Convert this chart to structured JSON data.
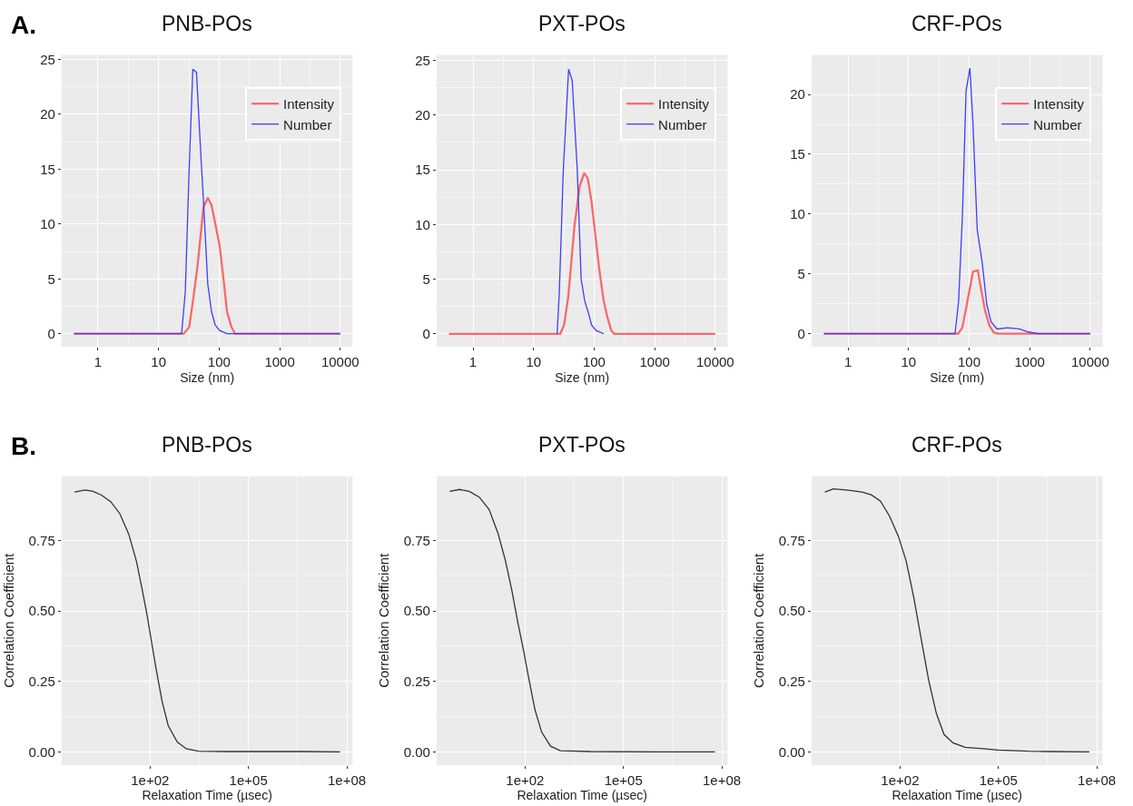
{
  "chart_data": [
    {
      "type": "line",
      "title": "PNB-POs",
      "xlabel": "Size (nm)",
      "log": "x",
      "xlim": [
        0.25,
        16000
      ],
      "ylim": [
        -1.21,
        25.4
      ],
      "xticks": [
        1,
        10,
        100,
        1000,
        10000
      ],
      "yticks": [
        0,
        5,
        10,
        15,
        20,
        25
      ],
      "grid": true,
      "legend": "top right",
      "annotations": [
        "A."
      ],
      "series": [
        {
          "name": "Intensity",
          "color": "#f8696b",
          "x": [
            0.4,
            26,
            32,
            37,
            44,
            55,
            65,
            75,
            88,
            102,
            118,
            135,
            160,
            184,
            10000
          ],
          "values": [
            0,
            0,
            0.6,
            3,
            6.2,
            11.5,
            12.4,
            11.7,
            9.8,
            8,
            5,
            2,
            0.6,
            0,
            0
          ]
        },
        {
          "name": "Number",
          "color": "#3d3dff",
          "x": [
            0.4,
            24,
            27.6,
            32,
            36.8,
            42.3,
            48,
            55,
            65,
            75,
            86,
            102,
            135,
            10000
          ],
          "values": [
            0,
            0,
            3.8,
            15,
            24.1,
            23.8,
            18,
            12.2,
            4.5,
            2,
            0.8,
            0.3,
            0,
            0
          ]
        }
      ]
    },
    {
      "type": "line",
      "title": "PXT-POs",
      "xlabel": "Size (nm)",
      "log": "x",
      "xlim": [
        0.25,
        16000
      ],
      "ylim": [
        -1.21,
        25.5
      ],
      "xticks": [
        1,
        10,
        100,
        1000,
        10000
      ],
      "yticks": [
        0,
        5,
        10,
        15,
        20,
        25
      ],
      "grid": true,
      "legend": "top right",
      "series": [
        {
          "name": "Intensity",
          "color": "#f8696b",
          "x": [
            0.4,
            27.5,
            31.9,
            37.6,
            47.6,
            57.8,
            68.6,
            78.6,
            91,
            105,
            121,
            144,
            166,
            192,
            215,
            10000
          ],
          "values": [
            0,
            0,
            0.8,
            3.5,
            10,
            13.5,
            14.7,
            14.2,
            12,
            9,
            6,
            3,
            1.5,
            0.3,
            0,
            0
          ]
        },
        {
          "name": "Number",
          "color": "#3d3dff",
          "x": [
            24.5,
            26.6,
            31,
            37.9,
            43.4,
            52.7,
            61,
            70,
            79.6,
            91,
            108,
            144
          ],
          "values": [
            0,
            3.8,
            15,
            24.2,
            23.2,
            15,
            5,
            3,
            2,
            0.8,
            0.3,
            0
          ]
        }
      ]
    },
    {
      "type": "line",
      "title": "CRF-POs",
      "xlabel": "Size (nm)",
      "log": "x",
      "xlim": [
        0.25,
        16000
      ],
      "ylim": [
        -1.11,
        23.3
      ],
      "xticks": [
        1,
        10,
        100,
        1000,
        10000
      ],
      "yticks": [
        0,
        5,
        10,
        15,
        20
      ],
      "grid": true,
      "legend": "top right",
      "series": [
        {
          "name": "Intensity",
          "color": "#f8696b",
          "x": [
            0.4,
            66,
            77,
            92,
            116,
            139,
            154,
            182,
            216,
            256,
            305,
            10000
          ],
          "values": [
            0,
            0,
            0.5,
            2.5,
            5.2,
            5.3,
            4,
            2,
            0.7,
            0.1,
            0,
            0
          ]
        },
        {
          "name": "Number",
          "color": "#3d3dff",
          "x": [
            0.4,
            58.5,
            67,
            77.7,
            89,
            103,
            116,
            136,
            164,
            195,
            230,
            288,
            430,
            675,
            950,
            1400,
            10000
          ],
          "values": [
            0,
            0,
            2.7,
            10,
            20.3,
            22.2,
            17.5,
            8.7,
            6,
            2.5,
            1,
            0.4,
            0.5,
            0.4,
            0.15,
            0,
            0
          ]
        }
      ]
    },
    {
      "type": "line",
      "title": "PNB-POs",
      "xlabel": "Relaxation Time (µsec)",
      "ylabel": "Correlation Coefficient",
      "log": "x",
      "xlim": [
        0.2,
        150000000
      ],
      "ylim": [
        -0.047,
        0.978
      ],
      "xticks": [
        {
          "value": 100,
          "label": "1e+02"
        },
        {
          "value": 100000,
          "label": "1e+05"
        },
        {
          "value": 100000000,
          "label": "1e+08"
        }
      ],
      "yticks": [
        {
          "value": 0,
          "label": "0.00"
        },
        {
          "value": 0.25,
          "label": "0.25"
        },
        {
          "value": 0.5,
          "label": "0.50"
        },
        {
          "value": 0.75,
          "label": "0.75"
        }
      ],
      "grid": true,
      "annotations": [
        "B."
      ],
      "series": [
        {
          "color": "#333333",
          "x": [
            0.5,
            1.03,
            1.77,
            3.3,
            6.3,
            12,
            22.6,
            38.4,
            58.8,
            80.9,
            111,
            153,
            234,
            358,
            677,
            1280,
            3000,
            20400,
            4200000,
            62000000
          ],
          "values": [
            0.922,
            0.929,
            0.925,
            0.911,
            0.888,
            0.845,
            0.771,
            0.676,
            0.57,
            0.485,
            0.39,
            0.294,
            0.178,
            0.093,
            0.035,
            0.011,
            0.002,
            0.001,
            0.001,
            0
          ]
        }
      ]
    },
    {
      "type": "line",
      "title": "PXT-POs",
      "xlabel": "Relaxation Time (µsec)",
      "ylabel": "Correlation Coefficient",
      "log": "x",
      "xlim": [
        0.2,
        150000000
      ],
      "ylim": [
        -0.047,
        0.978
      ],
      "xticks": [
        {
          "value": 100,
          "label": "1e+02"
        },
        {
          "value": 100000,
          "label": "1e+05"
        },
        {
          "value": 100000000,
          "label": "1e+08"
        }
      ],
      "yticks": [
        {
          "value": 0,
          "label": "0.00"
        },
        {
          "value": 0.25,
          "label": "0.25"
        },
        {
          "value": 0.5,
          "label": "0.50"
        },
        {
          "value": 0.75,
          "label": "0.75"
        }
      ],
      "grid": true,
      "series": [
        {
          "color": "#333333",
          "x": [
            0.5,
            1.0,
            2,
            4,
            8,
            15,
            25,
            40,
            60,
            90,
            130,
            200,
            320,
            600,
            1200,
            10000,
            1000000,
            62000000
          ],
          "values": [
            0.924,
            0.931,
            0.924,
            0.904,
            0.86,
            0.775,
            0.68,
            0.57,
            0.46,
            0.36,
            0.26,
            0.15,
            0.07,
            0.02,
            0.004,
            0.001,
            0,
            0
          ]
        }
      ]
    },
    {
      "type": "line",
      "title": "CRF-POs",
      "xlabel": "Relaxation Time (µsec)",
      "ylabel": "Correlation Coefficient",
      "log": "x",
      "xlim": [
        0.2,
        150000000
      ],
      "ylim": [
        -0.047,
        0.978
      ],
      "xticks": [
        {
          "value": 100,
          "label": "1e+02"
        },
        {
          "value": 100000,
          "label": "1e+05"
        },
        {
          "value": 100000000,
          "label": "1e+08"
        }
      ],
      "yticks": [
        {
          "value": 0,
          "label": "0.00"
        },
        {
          "value": 0.25,
          "label": "0.25"
        },
        {
          "value": 0.5,
          "label": "0.50"
        },
        {
          "value": 0.75,
          "label": "0.75"
        }
      ],
      "grid": true,
      "series": [
        {
          "color": "#333333",
          "x": [
            0.51,
            0.92,
            2.4,
            7.0,
            13.2,
            25,
            47.6,
            90,
            153,
            260,
            442,
            750,
            1280,
            2180,
            4100,
            9700,
            35000,
            100000,
            840000,
            3700000,
            59000000
          ],
          "values": [
            0.922,
            0.933,
            0.929,
            0.922,
            0.912,
            0.89,
            0.837,
            0.763,
            0.678,
            0.55,
            0.4,
            0.253,
            0.136,
            0.062,
            0.032,
            0.016,
            0.011,
            0.006,
            0.002,
            0.001,
            0
          ]
        }
      ]
    }
  ]
}
